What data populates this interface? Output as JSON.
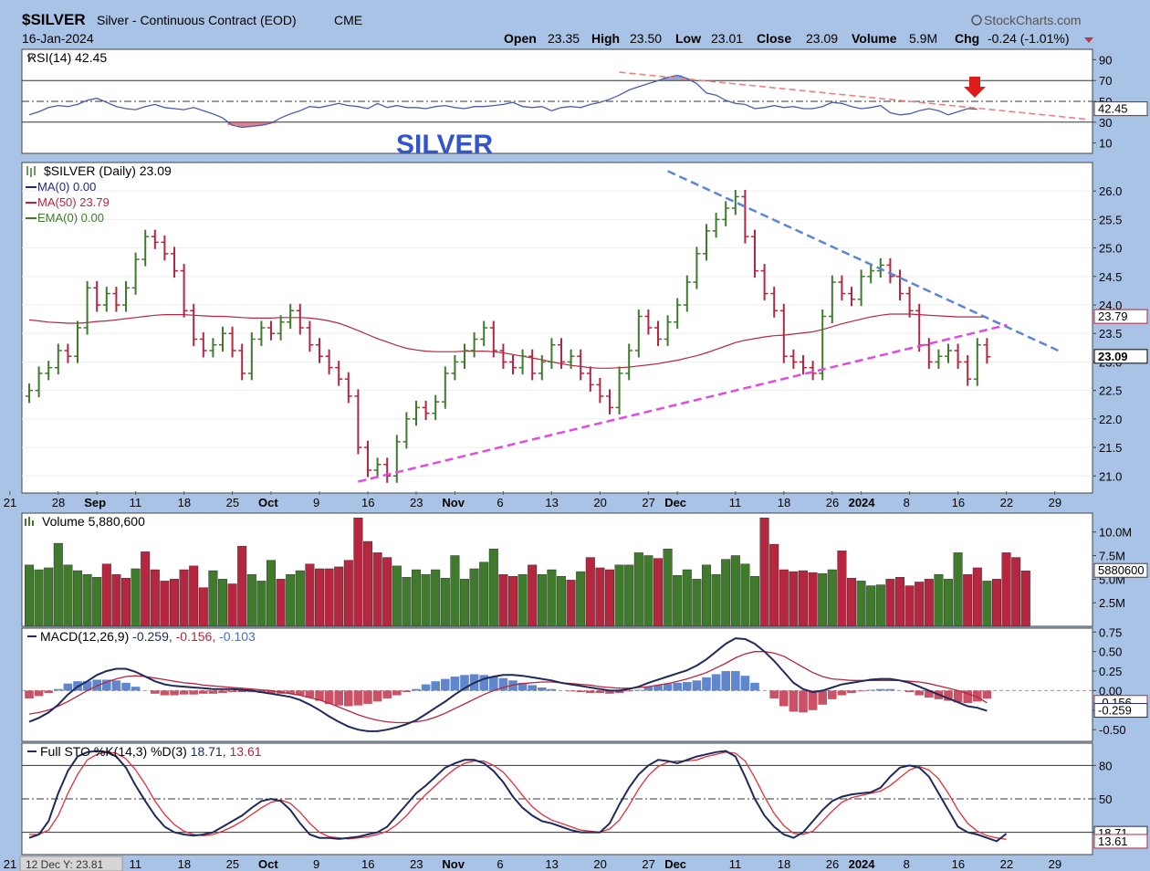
{
  "header": {
    "symbol": "$SILVER",
    "description": "Silver - Continuous Contract (EOD)",
    "exchange": "CME",
    "date": "16-Jan-2024",
    "brand": "StockCharts.com",
    "open_label": "Open",
    "open": "23.35",
    "high_label": "High",
    "high": "23.50",
    "low_label": "Low",
    "low": "23.01",
    "close_label": "Close",
    "close": "23.09",
    "volume_label": "Volume",
    "volume": "5.9M",
    "chg_label": "Chg",
    "chg": "-0.24 (-1.01%)"
  },
  "annotation": "SILVER",
  "status_readout": "12 Dec Y: 23.81",
  "colors": {
    "up": "#3f7a2d",
    "down": "#b5263f",
    "ma50": "#b5263f",
    "rsi": "#4b5fa8",
    "panel_bg": "#ffffff",
    "axis_bg": "#a9c3e6",
    "fill_pos": "#4472c4",
    "fill_neg": "#c2324b",
    "trend_down": "#5b86d6",
    "trend_up": "#e04be0",
    "rsi_trend": "#f08080",
    "arrow": "#e01b1b"
  },
  "chart_data": [
    {
      "type": "line",
      "name": "rsi_panel",
      "title": "RSI(14) 42.45",
      "ylim": [
        0,
        100
      ],
      "ticks": [
        "90",
        "70",
        "50",
        "30",
        "10"
      ],
      "tick_values": [
        90,
        70,
        50,
        30,
        10
      ],
      "last_label": "42.45",
      "series": [
        {
          "values": [
            37,
            40,
            44,
            46,
            45,
            47,
            51,
            53,
            49,
            45,
            43,
            42,
            45,
            47,
            44,
            43,
            42,
            44,
            41,
            38,
            34,
            27,
            25,
            26,
            27,
            29,
            34,
            38,
            41,
            45,
            44,
            46,
            48,
            46,
            45,
            43,
            48,
            44,
            46,
            44,
            44,
            43,
            45,
            46,
            44,
            43,
            45,
            45,
            46,
            47,
            49,
            45,
            44,
            45,
            41,
            44,
            45,
            44,
            47,
            49,
            52,
            56,
            61,
            64,
            67,
            70,
            73,
            75,
            72,
            67,
            58,
            56,
            51,
            48,
            47,
            43,
            44,
            46,
            44,
            45,
            43,
            43,
            45,
            49,
            48,
            45,
            43,
            44,
            46,
            39,
            37,
            38,
            41,
            43,
            41,
            37,
            40,
            43,
            42.45
          ]
        }
      ],
      "trendline_label": ""
    },
    {
      "type": "candlestick",
      "name": "price_panel",
      "title": "$SILVER (Daily) 23.09",
      "legend": [
        {
          "text": "MA(0) 0.00",
          "color": "#1f2a7a"
        },
        {
          "text": "MA(50) 23.79",
          "color": "#b5263f"
        },
        {
          "text": "EMA(0) 0.00",
          "color": "#3f7a2d"
        }
      ],
      "ylim": [
        20.7,
        26.5
      ],
      "ticks": [
        "26.0",
        "25.5",
        "25.0",
        "24.5",
        "24.0",
        "23.5",
        "23.0",
        "22.5",
        "22.0",
        "21.5",
        "21.0"
      ],
      "tick_values": [
        26.0,
        25.5,
        25.0,
        24.5,
        24.0,
        23.5,
        23.0,
        22.5,
        22.0,
        21.5,
        21.0
      ],
      "last_labels": [
        "23.79",
        "23.09"
      ],
      "x_labels": [
        "21",
        "28",
        "Sep",
        "11",
        "18",
        "25",
        "Oct",
        "9",
        "16",
        "23",
        "Nov",
        "6",
        "13",
        "20",
        "27",
        "Dec",
        "11",
        "18",
        "26",
        "2024",
        "8",
        "16",
        "22",
        "29"
      ],
      "close": [
        22.5,
        22.8,
        22.9,
        23.2,
        23.1,
        23.6,
        24.3,
        24.0,
        24.2,
        24.0,
        24.3,
        24.8,
        25.2,
        25.1,
        24.9,
        24.6,
        23.9,
        23.4,
        23.2,
        23.3,
        23.5,
        23.2,
        22.8,
        23.4,
        23.6,
        23.5,
        23.7,
        23.9,
        23.6,
        23.3,
        23.1,
        22.9,
        22.7,
        22.4,
        21.5,
        21.1,
        21.2,
        21.0,
        21.6,
        22.0,
        22.2,
        22.1,
        22.3,
        22.8,
        23.0,
        23.2,
        23.4,
        23.6,
        23.2,
        23.0,
        22.9,
        23.1,
        22.8,
        23.0,
        23.3,
        23.0,
        23.1,
        22.8,
        22.6,
        22.4,
        22.2,
        22.8,
        23.2,
        23.8,
        23.6,
        23.4,
        23.7,
        24.0,
        24.4,
        24.9,
        25.3,
        25.5,
        25.7,
        25.9,
        25.2,
        24.6,
        24.2,
        23.9,
        23.1,
        23.0,
        22.9,
        22.8,
        23.8,
        24.4,
        24.2,
        24.1,
        24.5,
        24.6,
        24.7,
        24.5,
        24.2,
        23.9,
        23.3,
        23.0,
        23.1,
        23.2,
        23.0,
        22.7,
        23.3,
        23.09
      ],
      "ma50": [
        23.74,
        23.72,
        23.7,
        23.69,
        23.68,
        23.68,
        23.69,
        23.71,
        23.72,
        23.74,
        23.76,
        23.78,
        23.8,
        23.82,
        23.83,
        23.83,
        23.83,
        23.82,
        23.81,
        23.8,
        23.8,
        23.79,
        23.78,
        23.77,
        23.77,
        23.77,
        23.78,
        23.78,
        23.78,
        23.77,
        23.75,
        23.72,
        23.68,
        23.62,
        23.55,
        23.48,
        23.41,
        23.35,
        23.29,
        23.24,
        23.21,
        23.19,
        23.18,
        23.18,
        23.18,
        23.19,
        23.19,
        23.19,
        23.18,
        23.16,
        23.13,
        23.1,
        23.07,
        23.04,
        23.0,
        22.97,
        22.94,
        22.92,
        22.9,
        22.89,
        22.89,
        22.9,
        22.91,
        22.93,
        22.95,
        22.97,
        23.0,
        23.03,
        23.07,
        23.11,
        23.16,
        23.22,
        23.28,
        23.34,
        23.38,
        23.41,
        23.44,
        23.46,
        23.47,
        23.49,
        23.51,
        23.53,
        23.57,
        23.62,
        23.67,
        23.71,
        23.75,
        23.79,
        23.82,
        23.84,
        23.84,
        23.84,
        23.83,
        23.82,
        23.81,
        23.8,
        23.79,
        23.79,
        23.79,
        23.79
      ]
    },
    {
      "type": "bar",
      "name": "volume_panel",
      "title": "Volume 5,880,600",
      "ylim": [
        0,
        12000000
      ],
      "ticks": [
        "10.0M",
        "7.5M",
        "5.0M",
        "2.5M"
      ],
      "tick_values": [
        10000000,
        7500000,
        5000000,
        2500000
      ],
      "last_label": "5880600",
      "values": [
        6.5,
        6.0,
        6.2,
        8.8,
        6.5,
        5.9,
        5.5,
        5.2,
        6.6,
        5.5,
        5.1,
        6.1,
        7.9,
        6.0,
        4.8,
        5.0,
        6.0,
        6.4,
        4.1,
        5.9,
        5.0,
        4.5,
        8.5,
        5.5,
        4.8,
        7.0,
        5.0,
        5.5,
        5.9,
        6.6,
        6.1,
        6.1,
        6.3,
        7.0,
        11.5,
        9.0,
        7.8,
        7.3,
        6.4,
        5.2,
        6.0,
        5.5,
        6.0,
        5.1,
        7.5,
        5.0,
        6.1,
        6.8,
        8.2,
        5.5,
        5.3,
        5.5,
        6.5,
        5.5,
        6.0,
        5.3,
        4.9,
        5.8,
        7.3,
        6.2,
        6.0,
        6.5,
        6.5,
        7.8,
        7.5,
        7.2,
        8.2,
        5.4,
        6.0,
        5.0,
        6.5,
        5.5,
        7.1,
        7.5,
        6.6,
        5.3,
        11.5,
        8.7,
        6.0,
        5.8,
        5.9,
        5.7,
        5.6,
        6.0,
        8.0,
        5.1,
        4.8,
        4.3,
        4.4,
        5.0,
        5.2,
        4.3,
        4.7,
        5.0,
        5.5,
        5.0,
        7.8,
        5.5,
        6.2,
        4.8,
        5.0,
        7.8,
        7.3,
        5.88
      ],
      "colors": [
        "u",
        "u",
        "u",
        "u",
        "u",
        "u",
        "u",
        "u",
        "d",
        "d",
        "d",
        "u",
        "d",
        "d",
        "d",
        "d",
        "d",
        "d",
        "d",
        "u",
        "u",
        "d",
        "d",
        "u",
        "u",
        "u",
        "d",
        "u",
        "u",
        "d",
        "d",
        "d",
        "d",
        "d",
        "d",
        "d",
        "d",
        "d",
        "u",
        "u",
        "u",
        "u",
        "u",
        "u",
        "u",
        "u",
        "u",
        "u",
        "u",
        "d",
        "d",
        "u",
        "d",
        "u",
        "u",
        "u",
        "d",
        "u",
        "d",
        "d",
        "d",
        "u",
        "u",
        "u",
        "u",
        "d",
        "u",
        "u",
        "u",
        "u",
        "u",
        "u",
        "u",
        "u",
        "u",
        "u",
        "d",
        "d",
        "d",
        "d",
        "d",
        "d",
        "u",
        "u",
        "d",
        "d",
        "u",
        "u",
        "u",
        "d",
        "d",
        "d",
        "d",
        "d",
        "u",
        "u",
        "u",
        "d",
        "d",
        "u"
      ]
    },
    {
      "type": "line",
      "name": "macd_panel",
      "title": "MACD(12,26,9)",
      "values_label": [
        "-0.259",
        "-0.156",
        "-0.103"
      ],
      "ylim": [
        -0.65,
        0.8
      ],
      "ticks": [
        "0.75",
        "0.50",
        "0.25",
        "0.00",
        "-0.25",
        "-0.50"
      ],
      "tick_values": [
        0.75,
        0.5,
        0.25,
        0.0,
        -0.25,
        -0.5
      ],
      "last_labels": [
        "-0.156",
        "-0.259"
      ],
      "macd": [
        -0.4,
        -0.35,
        -0.28,
        -0.18,
        -0.05,
        0.05,
        0.12,
        0.2,
        0.25,
        0.28,
        0.28,
        0.24,
        0.18,
        0.12,
        0.08,
        0.06,
        0.05,
        0.04,
        0.03,
        0.02,
        0.02,
        0.02,
        0.01,
        0.0,
        -0.02,
        -0.04,
        -0.06,
        -0.08,
        -0.12,
        -0.18,
        -0.25,
        -0.33,
        -0.4,
        -0.46,
        -0.5,
        -0.52,
        -0.52,
        -0.5,
        -0.47,
        -0.43,
        -0.38,
        -0.3,
        -0.22,
        -0.14,
        -0.05,
        0.03,
        0.1,
        0.15,
        0.18,
        0.2,
        0.2,
        0.19,
        0.17,
        0.15,
        0.13,
        0.1,
        0.08,
        0.06,
        0.04,
        0.02,
        0.0,
        0.0,
        0.02,
        0.05,
        0.1,
        0.14,
        0.18,
        0.22,
        0.26,
        0.32,
        0.4,
        0.5,
        0.6,
        0.67,
        0.66,
        0.6,
        0.5,
        0.38,
        0.24,
        0.1,
        0.02,
        -0.02,
        0.0,
        0.04,
        0.08,
        0.1,
        0.12,
        0.14,
        0.15,
        0.15,
        0.13,
        0.1,
        0.05,
        0.0,
        -0.05,
        -0.1,
        -0.15,
        -0.2,
        -0.22,
        -0.259
      ],
      "signal": [
        -0.3,
        -0.28,
        -0.25,
        -0.2,
        -0.14,
        -0.07,
        0.0,
        0.06,
        0.11,
        0.15,
        0.18,
        0.19,
        0.18,
        0.16,
        0.14,
        0.12,
        0.1,
        0.09,
        0.07,
        0.06,
        0.05,
        0.04,
        0.03,
        0.02,
        0.01,
        0.0,
        -0.02,
        -0.04,
        -0.06,
        -0.09,
        -0.12,
        -0.16,
        -0.21,
        -0.26,
        -0.31,
        -0.35,
        -0.38,
        -0.4,
        -0.41,
        -0.41,
        -0.4,
        -0.38,
        -0.34,
        -0.29,
        -0.23,
        -0.17,
        -0.11,
        -0.05,
        0.0,
        0.04,
        0.07,
        0.09,
        0.1,
        0.11,
        0.11,
        0.1,
        0.09,
        0.08,
        0.07,
        0.05,
        0.04,
        0.03,
        0.03,
        0.04,
        0.05,
        0.07,
        0.09,
        0.12,
        0.15,
        0.19,
        0.23,
        0.29,
        0.35,
        0.42,
        0.47,
        0.5,
        0.5,
        0.48,
        0.44,
        0.37,
        0.3,
        0.23,
        0.18,
        0.15,
        0.14,
        0.13,
        0.13,
        0.13,
        0.13,
        0.13,
        0.13,
        0.12,
        0.11,
        0.09,
        0.06,
        0.03,
        0.0,
        -0.04,
        -0.08,
        -0.156
      ]
    },
    {
      "type": "line",
      "name": "sto_panel",
      "title": "Full STO %K(14,3) %D(3)",
      "values_label": [
        "18.71",
        "13.61"
      ],
      "ylim": [
        0,
        100
      ],
      "ticks": [
        "80",
        "50",
        "20"
      ],
      "tick_values": [
        80,
        50,
        20
      ],
      "last_labels": [
        "18.71",
        "13.61"
      ],
      "k": [
        15,
        18,
        30,
        55,
        75,
        88,
        92,
        93,
        92,
        88,
        78,
        62,
        48,
        35,
        25,
        20,
        18,
        17,
        18,
        20,
        25,
        30,
        35,
        42,
        48,
        50,
        48,
        40,
        28,
        18,
        15,
        15,
        14,
        15,
        16,
        18,
        20,
        25,
        35,
        45,
        55,
        62,
        70,
        78,
        82,
        85,
        85,
        82,
        75,
        65,
        52,
        42,
        35,
        30,
        28,
        25,
        22,
        20,
        20,
        20,
        28,
        45,
        60,
        72,
        80,
        85,
        84,
        82,
        85,
        88,
        90,
        92,
        93,
        88,
        70,
        50,
        35,
        25,
        18,
        15,
        20,
        30,
        40,
        48,
        52,
        54,
        55,
        56,
        60,
        70,
        78,
        80,
        78,
        70,
        55,
        40,
        25,
        20,
        18,
        15,
        12,
        18.71
      ],
      "d": [
        18,
        18,
        22,
        35,
        55,
        72,
        85,
        90,
        92,
        91,
        86,
        76,
        63,
        48,
        36,
        27,
        21,
        18,
        17,
        18,
        21,
        25,
        30,
        36,
        42,
        47,
        49,
        46,
        38,
        28,
        20,
        16,
        15,
        14,
        15,
        16,
        18,
        21,
        27,
        35,
        45,
        54,
        62,
        70,
        77,
        82,
        84,
        84,
        80,
        74,
        64,
        53,
        43,
        36,
        31,
        28,
        25,
        22,
        21,
        20,
        23,
        31,
        44,
        59,
        71,
        79,
        83,
        84,
        84,
        85,
        88,
        90,
        92,
        91,
        84,
        69,
        52,
        37,
        26,
        19,
        18,
        21,
        30,
        39,
        47,
        51,
        53,
        55,
        57,
        62,
        69,
        76,
        79,
        76,
        68,
        55,
        40,
        28,
        21,
        17,
        15,
        13.61
      ]
    }
  ]
}
